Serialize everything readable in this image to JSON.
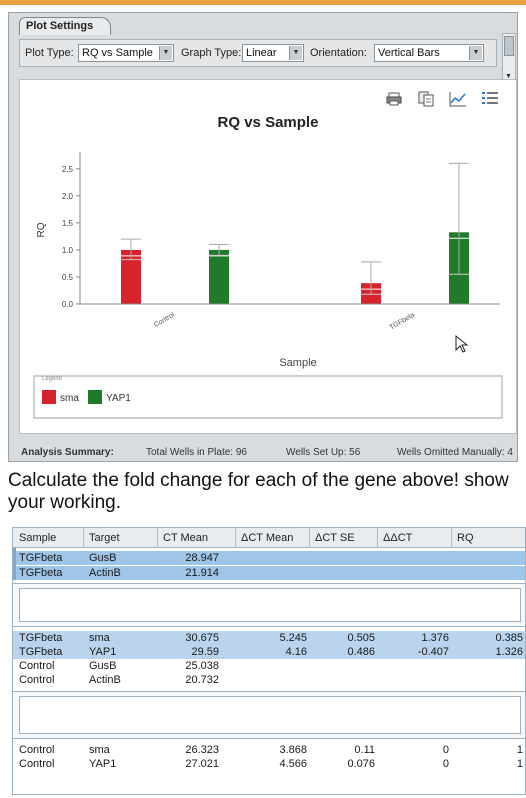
{
  "settings": {
    "tab_label": "Plot Settings",
    "plot_type_label": "Plot Type:",
    "plot_type_value": "RQ vs Sample",
    "graph_type_label": "Graph Type:",
    "graph_type_value": "Linear",
    "orientation_label": "Orientation:",
    "orientation_value": "Vertical Bars"
  },
  "toolbar": {
    "icons": [
      "print-icon",
      "copy-icon",
      "line-chart-icon",
      "legend-list-icon"
    ]
  },
  "chart_data": {
    "type": "bar",
    "title": "RQ vs Sample",
    "xlabel": "Sample",
    "ylabel": "RQ",
    "categories": [
      "Control",
      "TGFbeta"
    ],
    "series": [
      {
        "name": "sma",
        "color": "#d9232c",
        "values": [
          1.0,
          0.385
        ],
        "error_high": [
          1.2,
          0.78
        ],
        "error_low": [
          0.82,
          0.18
        ]
      },
      {
        "name": "YAP1",
        "color": "#1f7a2a",
        "values": [
          1.0,
          1.326
        ],
        "error_high": [
          1.1,
          2.6
        ],
        "error_low": [
          0.9,
          0.55
        ]
      }
    ],
    "yticks": [
      "0.0",
      "0.5",
      "1.0",
      "1.5",
      "2.0",
      "2.5"
    ],
    "ylim": [
      0,
      2.7
    ],
    "legend_title": "Legend",
    "legend_placement": "bottom"
  },
  "summary": {
    "label": "Analysis Summary:",
    "total_wells": "Total Wells in Plate: 96",
    "wells_set_up": "Wells Set Up: 56",
    "wells_omitted": "Wells Omitted Manually: 4"
  },
  "question": "Calculate the fold change for each of the gene above! show your working.",
  "table": {
    "headers": [
      "Sample",
      "Target",
      "CT Mean",
      "ΔCT Mean",
      "ΔCT SE",
      "ΔΔCT",
      "RQ"
    ],
    "group1": [
      [
        "TGFbeta",
        "GusB",
        "28.947",
        "",
        "",
        "",
        ""
      ],
      [
        "TGFbeta",
        "ActinB",
        "21.914",
        "",
        "",
        "",
        ""
      ]
    ],
    "group2": [
      [
        "TGFbeta",
        "sma",
        "30.675",
        "5.245",
        "0.505",
        "1.376",
        "0.385"
      ],
      [
        "TGFbeta",
        "YAP1",
        "29.59",
        "4.16",
        "0.486",
        "-0.407",
        "1.326"
      ],
      [
        "Control",
        "GusB",
        "25.038",
        "",
        "",
        "",
        ""
      ],
      [
        "Control",
        "ActinB",
        "20.732",
        "",
        "",
        "",
        ""
      ]
    ],
    "group3": [
      [
        "Control",
        "sma",
        "26.323",
        "3.868",
        "0.11",
        "0",
        "1"
      ],
      [
        "Control",
        "YAP1",
        "27.021",
        "4.566",
        "0.076",
        "0",
        "1"
      ]
    ]
  }
}
